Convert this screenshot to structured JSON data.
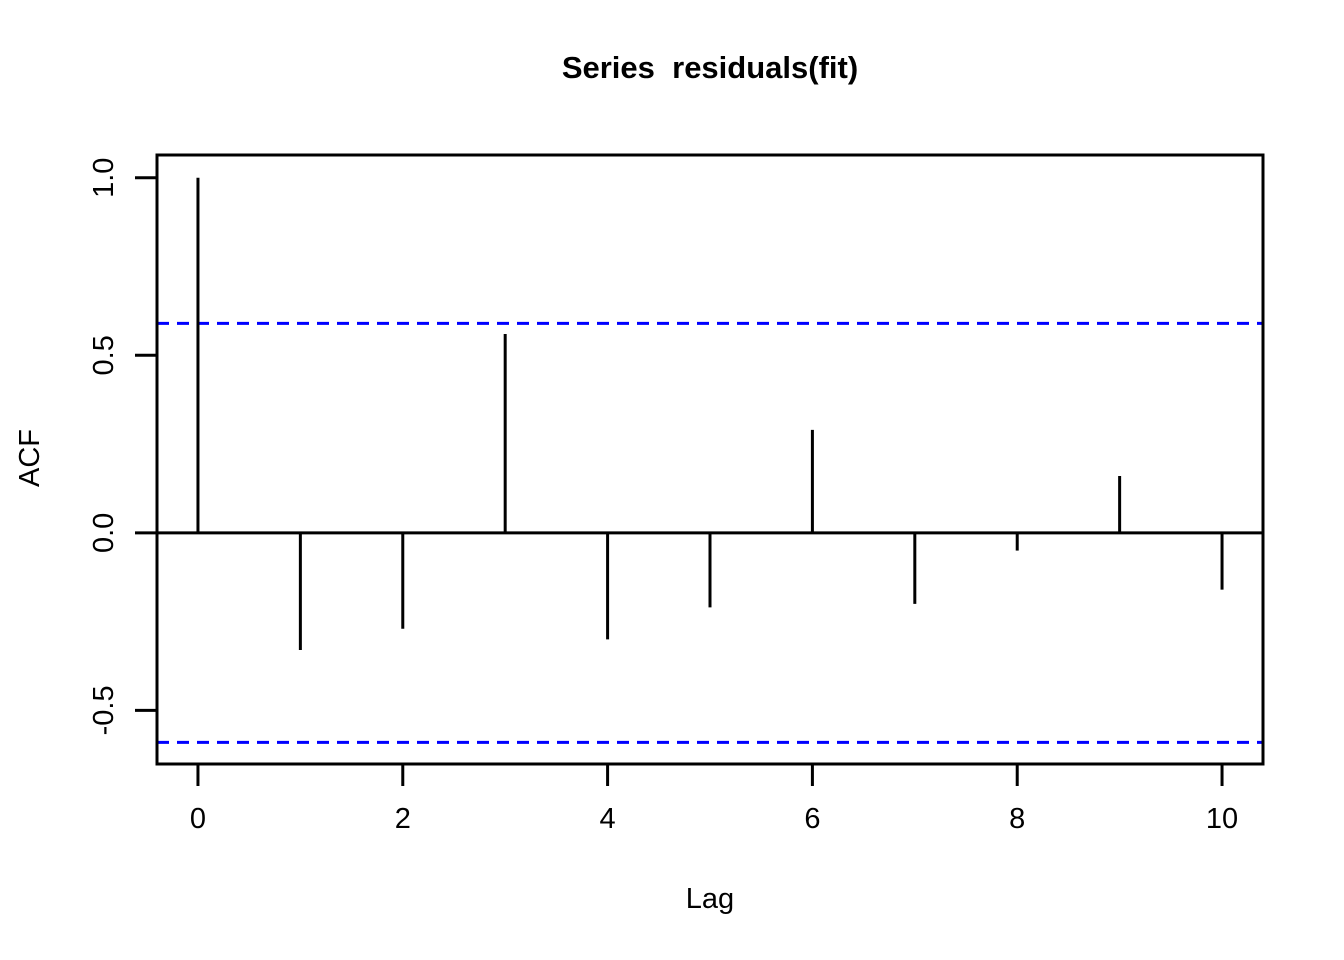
{
  "title": "Series  residuals(fit)",
  "chart_data": {
    "type": "bar",
    "subtype": "stem-acf",
    "title": "Series  residuals(fit)",
    "xlabel": "Lag",
    "ylabel": "ACF",
    "x": [
      0,
      1,
      2,
      3,
      4,
      5,
      6,
      7,
      8,
      9,
      10
    ],
    "values": [
      1.0,
      -0.33,
      -0.27,
      0.56,
      -0.3,
      -0.21,
      0.29,
      -0.2,
      -0.05,
      0.16,
      -0.16
    ],
    "confidence_bounds": {
      "upper": 0.59,
      "lower": -0.59
    },
    "x_ticks": [
      {
        "v": 0,
        "label": "0"
      },
      {
        "v": 2,
        "label": "2"
      },
      {
        "v": 4,
        "label": "4"
      },
      {
        "v": 6,
        "label": "6"
      },
      {
        "v": 8,
        "label": "8"
      },
      {
        "v": 10,
        "label": "10"
      }
    ],
    "y_ticks": [
      {
        "v": -0.5,
        "label": "-0.5"
      },
      {
        "v": 0.0,
        "label": "0.0"
      },
      {
        "v": 0.5,
        "label": "0.5"
      },
      {
        "v": 1.0,
        "label": "1.0"
      }
    ],
    "xlim": [
      -0.4,
      10.4
    ],
    "ylim": [
      -0.651,
      1.064
    ],
    "grid": false,
    "legend": false,
    "colors": {
      "series": "#000000",
      "axis": "#000000",
      "confidence": "#0000ff",
      "background": "#ffffff"
    }
  }
}
